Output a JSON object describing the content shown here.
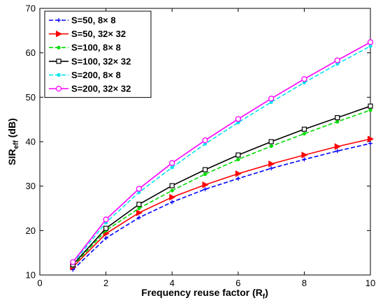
{
  "chart_data": {
    "type": "line",
    "title": "",
    "xlabel": {
      "main": "Frequency reuse factor (R",
      "sub": "f",
      "close": ")"
    },
    "ylabel": {
      "main": "SIR",
      "sub": "eff",
      "rest": " (dB)"
    },
    "xlim": [
      0,
      10
    ],
    "ylim": [
      10,
      70
    ],
    "xticks": [
      0,
      2,
      4,
      6,
      8,
      10
    ],
    "yticks": [
      10,
      20,
      30,
      40,
      50,
      60,
      70
    ],
    "x": [
      1,
      2,
      3,
      4,
      5,
      6,
      7,
      8,
      9,
      10
    ],
    "grid": false,
    "legend_position": "top-left",
    "series": [
      {
        "name": "S=50,   8× 8",
        "color": "#0000ff",
        "dash": "dashed",
        "marker": "plus",
        "values": [
          11.2,
          18.3,
          22.9,
          26.4,
          29.3,
          31.7,
          34.0,
          36.0,
          37.9,
          39.6
        ]
      },
      {
        "name": "S=50,   32× 32",
        "color": "#ff0000",
        "dash": "solid",
        "marker": "triangle-right",
        "values": [
          11.8,
          19.3,
          24.0,
          27.5,
          30.3,
          32.8,
          35.0,
          37.0,
          38.9,
          40.6
        ]
      },
      {
        "name": "S=100, 8× 8",
        "color": "#00dd00",
        "dash": "dashed",
        "marker": "dot",
        "values": [
          12.0,
          20.0,
          25.0,
          29.0,
          32.7,
          36.0,
          39.0,
          41.8,
          44.5,
          47.1
        ]
      },
      {
        "name": "S=100, 32× 32",
        "color": "#000000",
        "dash": "solid",
        "marker": "square",
        "values": [
          12.3,
          20.5,
          25.9,
          30.1,
          33.7,
          37.0,
          40.0,
          42.8,
          45.4,
          48.0
        ]
      },
      {
        "name": "S=200, 8× 8",
        "color": "#00e5ee",
        "dash": "dashed",
        "marker": "dot",
        "values": [
          12.6,
          21.8,
          28.6,
          34.2,
          39.5,
          44.3,
          48.9,
          53.3,
          57.5,
          61.5
        ]
      },
      {
        "name": "S=200, 32× 32",
        "color": "#ff00ff",
        "dash": "solid",
        "marker": "circle",
        "values": [
          12.9,
          22.5,
          29.4,
          35.2,
          40.3,
          45.1,
          49.7,
          54.1,
          58.3,
          62.4
        ]
      }
    ]
  }
}
